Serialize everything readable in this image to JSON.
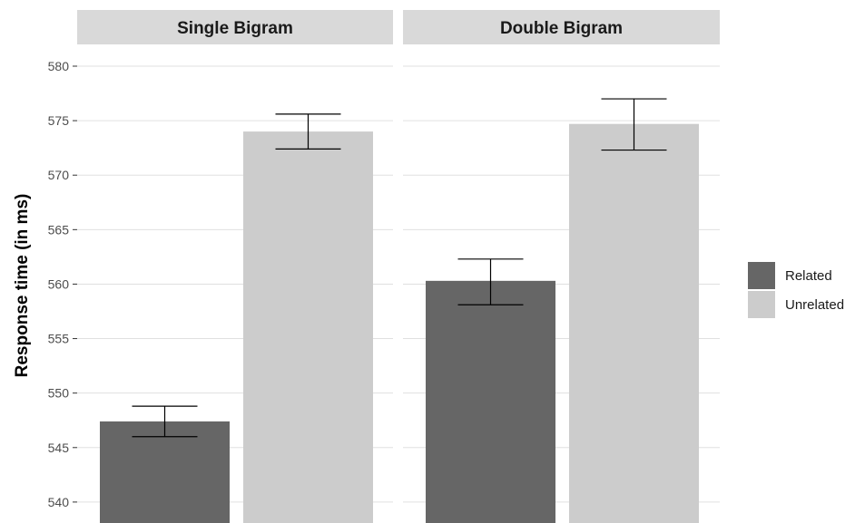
{
  "chart_data": {
    "type": "bar",
    "facets": [
      "Single Bigram",
      "Double Bigram"
    ],
    "ylabel": "Response time (in ms)",
    "xlabel": "",
    "ylim": [
      538,
      582
    ],
    "yticks": [
      540,
      545,
      550,
      555,
      560,
      565,
      570,
      575,
      580
    ],
    "grid": true,
    "legend_position": "right",
    "series": [
      {
        "name": "Related",
        "color": "#666666",
        "values": [
          547.4,
          560.3
        ],
        "error_low": [
          546.0,
          558.1
        ],
        "error_high": [
          548.8,
          562.3
        ]
      },
      {
        "name": "Unrelated",
        "color": "#cccccc",
        "values": [
          574.0,
          574.7
        ],
        "error_low": [
          572.4,
          572.3
        ],
        "error_high": [
          575.6,
          577.0
        ]
      }
    ]
  },
  "colors": {
    "strip_background": "#d9d9d9",
    "grid": "#e0e0e0",
    "error_bar": "#000000"
  }
}
